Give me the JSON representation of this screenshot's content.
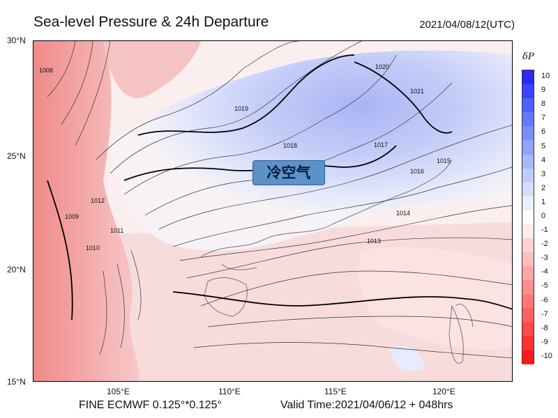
{
  "header": {
    "title": "Sea-level Pressure & 24h Departure",
    "datetime": "2021/04/08/12(UTC)"
  },
  "footer": {
    "model": "FINE ECMWF 0.125°*0.125°",
    "valid_time": "Valid Time:2021/04/06/12 + 048hrs"
  },
  "annotation": {
    "cold_air": "冷空气"
  },
  "axes": {
    "lat_labels": [
      "30°N",
      "25°N",
      "20°N",
      "15°N"
    ],
    "lon_labels": [
      "105°E",
      "110°E",
      "115°E",
      "120°E"
    ]
  },
  "colorbar": {
    "title": "δP",
    "labels": [
      "10",
      "9",
      "8",
      "7",
      "6",
      "5",
      "4",
      "3",
      "2",
      "1",
      "0",
      "-1",
      "-2",
      "-3",
      "-4",
      "-5",
      "-6",
      "-7",
      "-8",
      "-9",
      "-10"
    ],
    "colors": [
      "#2a2aff",
      "#3d44ff",
      "#5060ff",
      "#6578ff",
      "#7b8eff",
      "#92a3ff",
      "#a9b7ff",
      "#c0cbff",
      "#d6deff",
      "#eaeeff",
      "#ffffff",
      "#ffeaea",
      "#ffd2d2",
      "#ffbcbc",
      "#ffa5a5",
      "#ff8e8e",
      "#ff7777",
      "#ff6060",
      "#ff4848",
      "#ff3030",
      "#ff1a1a"
    ]
  },
  "isobar_labels": [
    "1008",
    "1009",
    "1010",
    "1011",
    "1012",
    "1013",
    "1014",
    "1015",
    "1016",
    "1017",
    "1018",
    "1019",
    "1020",
    "1021"
  ]
}
